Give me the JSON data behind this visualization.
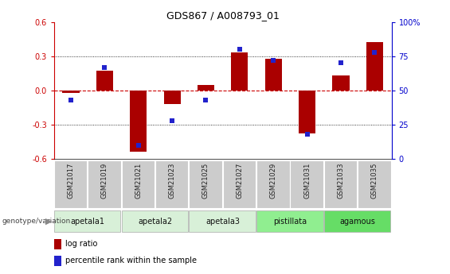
{
  "title": "GDS867 / A008793_01",
  "samples": [
    "GSM21017",
    "GSM21019",
    "GSM21021",
    "GSM21023",
    "GSM21025",
    "GSM21027",
    "GSM21029",
    "GSM21031",
    "GSM21033",
    "GSM21035"
  ],
  "log_ratio": [
    -0.02,
    0.17,
    -0.54,
    -0.12,
    0.05,
    0.33,
    0.28,
    -0.38,
    0.13,
    0.42
  ],
  "percentile_rank": [
    43,
    67,
    10,
    28,
    43,
    80,
    72,
    18,
    70,
    78
  ],
  "groups": [
    {
      "name": "apetala1",
      "start": 0,
      "end": 2,
      "color": "#d8f0d8"
    },
    {
      "name": "apetala2",
      "start": 2,
      "end": 4,
      "color": "#d8f0d8"
    },
    {
      "name": "apetala3",
      "start": 4,
      "end": 6,
      "color": "#d8f0d8"
    },
    {
      "name": "pistillata",
      "start": 6,
      "end": 8,
      "color": "#90ee90"
    },
    {
      "name": "agamous",
      "start": 8,
      "end": 10,
      "color": "#66dd66"
    }
  ],
  "ylim": [
    -0.6,
    0.6
  ],
  "y2lim": [
    0,
    100
  ],
  "yticks": [
    -0.6,
    -0.3,
    0.0,
    0.3,
    0.6
  ],
  "y2ticks": [
    0,
    25,
    50,
    75,
    100
  ],
  "bar_color_red": "#aa0000",
  "dot_color_blue": "#2222cc",
  "zero_line_color": "#cc0000",
  "grid_color": "#000000",
  "sample_box_color": "#cccccc",
  "figsize": [
    5.65,
    3.45
  ],
  "dpi": 100
}
